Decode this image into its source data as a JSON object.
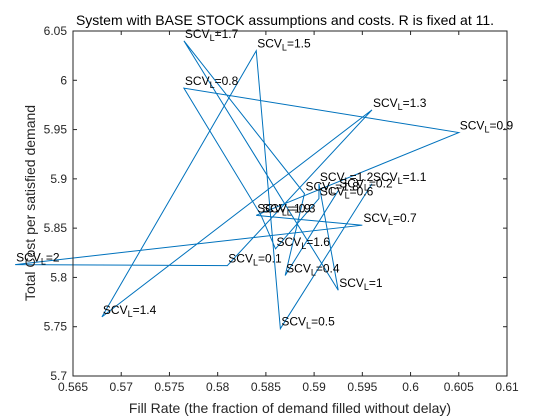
{
  "chart_data": {
    "type": "line",
    "title": "System with BASE STOCK assumptions and costs.  R is fixed at 11.",
    "xlabel": "Fill Rate (the fraction of demand filled without delay)",
    "ylabel": "Total Cost per satisfied demand",
    "xlim": [
      0.565,
      0.61
    ],
    "ylim": [
      5.7,
      6.05
    ],
    "xticks": [
      0.565,
      0.57,
      0.575,
      0.58,
      0.585,
      0.59,
      0.595,
      0.6,
      0.605,
      0.61
    ],
    "yticks": [
      5.7,
      5.75,
      5.8,
      5.85,
      5.9,
      5.95,
      6.0,
      6.05
    ],
    "xtick_labels": [
      "0.565",
      "0.57",
      "0.575",
      "0.58",
      "0.585",
      "0.59",
      "0.595",
      "0.6",
      "0.605",
      "0.61"
    ],
    "ytick_labels": [
      "5.7",
      "5.75",
      "5.8",
      "5.85",
      "5.9",
      "5.95",
      "6",
      "6.05"
    ],
    "grid": false,
    "line_color": "#0072bd",
    "points": [
      {
        "x": 0.5925,
        "y": 5.888,
        "label_base": "SCV",
        "label_sub": "L",
        "label_val": "=0.2"
      },
      {
        "x": 0.587,
        "y": 5.802,
        "label_base": "SCV",
        "label_sub": "L",
        "label_val": "=0.4"
      },
      {
        "x": 0.589,
        "y": 5.885,
        "label_base": "SCV",
        "label_sub": "L",
        "label_val": "=1.8"
      },
      {
        "x": 0.5765,
        "y": 6.04,
        "label_base": "SCV",
        "label_sub": "L",
        "label_val": "=1.7"
      },
      {
        "x": 0.5925,
        "y": 5.787,
        "label_base": "SCV",
        "label_sub": "L",
        "label_val": "=1"
      },
      {
        "x": 0.5905,
        "y": 5.895,
        "label_base": "SCV",
        "label_sub": "L",
        "label_val": "=1.2"
      },
      {
        "x": 0.5905,
        "y": 5.88,
        "label_base": "SCV",
        "label_sub": "L",
        "label_val": "=0.6"
      },
      {
        "x": 0.586,
        "y": 5.829,
        "label_base": "SCV",
        "label_sub": "L",
        "label_val": "=1.6"
      },
      {
        "x": 0.5845,
        "y": 5.863,
        "label_base": "SCV",
        "label_sub": "L",
        "label_val": "=0.3"
      },
      {
        "x": 0.5765,
        "y": 5.992,
        "label_base": "SCV",
        "label_sub": "L",
        "label_val": "=0.8"
      },
      {
        "x": 0.605,
        "y": 5.947,
        "label_base": "SCV",
        "label_sub": "L",
        "label_val": "=0.9"
      },
      {
        "x": 0.584,
        "y": 5.863,
        "label_base": "SCV",
        "label_sub": "L",
        "label_val": "=1.9"
      },
      {
        "x": 0.595,
        "y": 5.853,
        "label_base": "SCV",
        "label_sub": "L",
        "label_val": "=0.7"
      },
      {
        "x": 0.559,
        "y": 5.813,
        "label_base": "SCV",
        "label_sub": "L",
        "label_val": "=2"
      },
      {
        "x": 0.581,
        "y": 5.812,
        "label_base": "SCV",
        "label_sub": "L",
        "label_val": "=0.1"
      },
      {
        "x": 0.596,
        "y": 5.97,
        "label_base": "SCV",
        "label_sub": "L",
        "label_val": "=1.3"
      },
      {
        "x": 0.568,
        "y": 5.76,
        "label_base": "SCV",
        "label_sub": "L",
        "label_val": "=1.4"
      },
      {
        "x": 0.584,
        "y": 6.03,
        "label_base": "SCV",
        "label_sub": "L",
        "label_val": "=1.5"
      },
      {
        "x": 0.5865,
        "y": 5.748,
        "label_base": "SCV",
        "label_sub": "L",
        "label_val": "=0.5"
      },
      {
        "x": 0.596,
        "y": 5.895,
        "label_base": "SCV",
        "label_sub": "L",
        "label_val": "=1.1"
      }
    ]
  }
}
